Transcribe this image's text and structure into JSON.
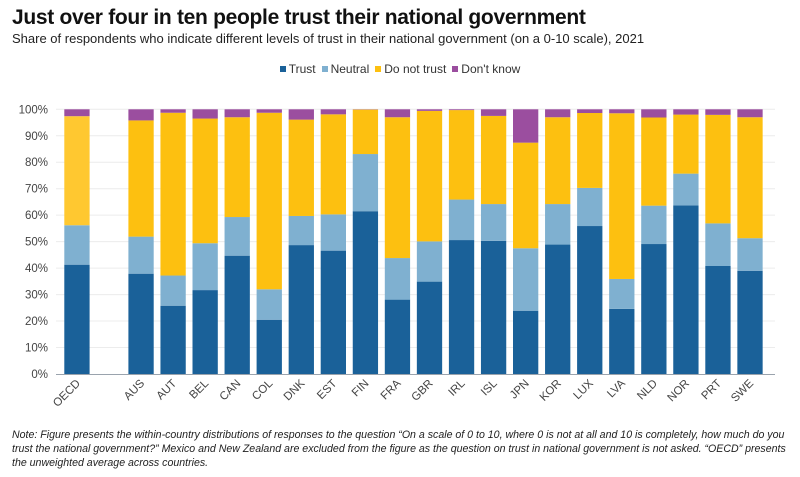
{
  "chart_data": {
    "type": "bar",
    "stacked": true,
    "title": "Just over four in ten people trust their national government",
    "subtitle": "Share of respondents who indicate different levels of trust in their national government (on a 0-10 scale), 2021",
    "xlabel": "",
    "ylabel": "",
    "ylim": [
      0,
      100
    ],
    "yticks": [
      "0%",
      "10%",
      "20%",
      "30%",
      "40%",
      "50%",
      "60%",
      "70%",
      "80%",
      "90%",
      "100%"
    ],
    "grid": true,
    "legend_position": "top",
    "categories": [
      "OECD",
      "",
      "AUS",
      "AUT",
      "BEL",
      "CAN",
      "COL",
      "DNK",
      "EST",
      "FIN",
      "FRA",
      "GBR",
      "IRL",
      "ISL",
      "JPN",
      "KOR",
      "LUX",
      "LVA",
      "NLD",
      "NOR",
      "PRT",
      "SWE"
    ],
    "series": [
      {
        "name": "Trust",
        "color": "#1a6199",
        "values": [
          41.3,
          null,
          37.9,
          25.8,
          31.7,
          44.7,
          20.5,
          48.7,
          46.6,
          61.5,
          28.1,
          34.9,
          50.6,
          50.3,
          23.9,
          48.9,
          55.9,
          24.6,
          49.1,
          63.7,
          40.8,
          39.0
        ]
      },
      {
        "name": "Neutral",
        "color": "#7fb0d0",
        "values": [
          14.9,
          null,
          14.0,
          11.4,
          17.7,
          14.6,
          11.5,
          11.0,
          13.7,
          21.6,
          15.7,
          15.2,
          15.3,
          13.9,
          23.6,
          15.3,
          14.4,
          11.3,
          14.5,
          12.0,
          16.1,
          12.3
        ]
      },
      {
        "name": "Do not trust",
        "color": "#fdc010",
        "values": [
          41.2,
          null,
          43.9,
          61.5,
          47.1,
          37.7,
          66.7,
          36.4,
          37.8,
          16.8,
          53.2,
          49.3,
          33.8,
          33.3,
          39.9,
          32.8,
          28.3,
          62.6,
          33.3,
          22.3,
          41.0,
          45.7
        ]
      },
      {
        "name": "Don't know",
        "color": "#9b4e9f",
        "values": [
          2.6,
          null,
          4.2,
          1.3,
          3.5,
          3.0,
          1.3,
          3.9,
          1.9,
          0.1,
          3.0,
          0.6,
          0.3,
          2.5,
          12.6,
          3.0,
          1.4,
          1.5,
          3.1,
          2.0,
          2.1,
          3.0
        ]
      }
    ],
    "note": "Note: Figure presents the within-country distributions of responses to the question “On a scale of 0 to 10, where 0 is not at all and 10 is completely, how much do you trust the national government?” Mexico and New Zealand are excluded from the figure as the question on trust in national government is not asked. “OECD” presents the unweighted average across countries."
  }
}
